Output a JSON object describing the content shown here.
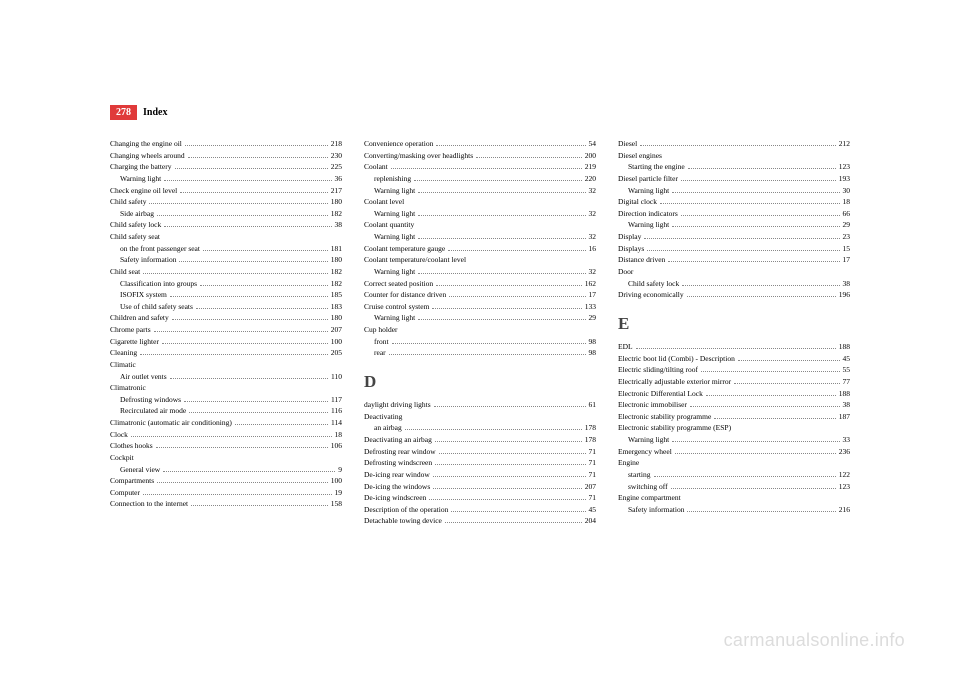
{
  "header": {
    "page_number": "278",
    "title": "Index"
  },
  "watermark": "carmanualsonline.info",
  "col1": [
    {
      "t": "e",
      "label": "Changing the engine oil",
      "pg": "218"
    },
    {
      "t": "e",
      "label": "Changing wheels around",
      "pg": "230"
    },
    {
      "t": "e",
      "label": "Charging the battery",
      "pg": "225"
    },
    {
      "t": "s",
      "label": "Warning light",
      "pg": "36"
    },
    {
      "t": "e",
      "label": "Check engine oil level",
      "pg": "217"
    },
    {
      "t": "e",
      "label": "Child safety",
      "pg": "180"
    },
    {
      "t": "s",
      "label": "Side airbag",
      "pg": "182"
    },
    {
      "t": "e",
      "label": "Child safety lock",
      "pg": "38"
    },
    {
      "t": "h",
      "label": "Child safety seat"
    },
    {
      "t": "s",
      "label": "on the front passenger seat",
      "pg": "181"
    },
    {
      "t": "s",
      "label": "Safety information",
      "pg": "180"
    },
    {
      "t": "e",
      "label": "Child seat",
      "pg": "182"
    },
    {
      "t": "s",
      "label": "Classification into groups",
      "pg": "182"
    },
    {
      "t": "s",
      "label": "ISOFIX system",
      "pg": "185"
    },
    {
      "t": "s",
      "label": "Use of child safety seats",
      "pg": "183"
    },
    {
      "t": "e",
      "label": "Children and safety",
      "pg": "180"
    },
    {
      "t": "e",
      "label": "Chrome parts",
      "pg": "207"
    },
    {
      "t": "e",
      "label": "Cigarette lighter",
      "pg": "100"
    },
    {
      "t": "e",
      "label": "Cleaning",
      "pg": "205"
    },
    {
      "t": "h",
      "label": "Climatic"
    },
    {
      "t": "s",
      "label": "Air outlet vents",
      "pg": "110"
    },
    {
      "t": "h",
      "label": "Climatronic"
    },
    {
      "t": "s",
      "label": "Defrosting windows",
      "pg": "117"
    },
    {
      "t": "s",
      "label": "Recirculated air mode",
      "pg": "116"
    },
    {
      "t": "e",
      "label": "Climatronic (automatic air conditioning)",
      "pg": "114"
    },
    {
      "t": "e",
      "label": "Clock",
      "pg": "18"
    },
    {
      "t": "e",
      "label": "Clothes hooks",
      "pg": "106"
    },
    {
      "t": "h",
      "label": "Cockpit"
    },
    {
      "t": "s",
      "label": "General view",
      "pg": "9"
    },
    {
      "t": "e",
      "label": "Compartments",
      "pg": "100"
    },
    {
      "t": "e",
      "label": "Computer",
      "pg": "19"
    },
    {
      "t": "e",
      "label": "Connection to the internet",
      "pg": "158"
    }
  ],
  "col2": [
    {
      "t": "e",
      "label": "Convenience operation",
      "pg": "54"
    },
    {
      "t": "e",
      "label": "Converting/masking over headlights",
      "pg": "200"
    },
    {
      "t": "e",
      "label": "Coolant",
      "pg": "219"
    },
    {
      "t": "s",
      "label": "replenishing",
      "pg": "220"
    },
    {
      "t": "s",
      "label": "Warning light",
      "pg": "32"
    },
    {
      "t": "h",
      "label": "Coolant level"
    },
    {
      "t": "s",
      "label": "Warning light",
      "pg": "32"
    },
    {
      "t": "h",
      "label": "Coolant quantity"
    },
    {
      "t": "s",
      "label": "Warning light",
      "pg": "32"
    },
    {
      "t": "e",
      "label": "Coolant temperature gauge",
      "pg": "16"
    },
    {
      "t": "h",
      "label": "Coolant temperature/coolant level"
    },
    {
      "t": "s",
      "label": "Warning light",
      "pg": "32"
    },
    {
      "t": "e",
      "label": "Correct seated position",
      "pg": "162"
    },
    {
      "t": "e",
      "label": "Counter for distance driven",
      "pg": "17"
    },
    {
      "t": "e",
      "label": "Cruise control system",
      "pg": "133"
    },
    {
      "t": "s",
      "label": "Warning light",
      "pg": "29"
    },
    {
      "t": "h",
      "label": "Cup holder"
    },
    {
      "t": "s",
      "label": "front",
      "pg": "98"
    },
    {
      "t": "s",
      "label": "rear",
      "pg": "98"
    },
    {
      "t": "L",
      "label": "D"
    },
    {
      "t": "e",
      "label": "daylight driving lights",
      "pg": "61"
    },
    {
      "t": "h",
      "label": "Deactivating"
    },
    {
      "t": "s",
      "label": "an airbag",
      "pg": "178"
    },
    {
      "t": "e",
      "label": "Deactivating an airbag",
      "pg": "178"
    },
    {
      "t": "e",
      "label": "Defrosting rear window",
      "pg": "71"
    },
    {
      "t": "e",
      "label": "Defrosting windscreen",
      "pg": "71"
    },
    {
      "t": "e",
      "label": "De-icing rear window",
      "pg": "71"
    },
    {
      "t": "e",
      "label": "De-icing the windows",
      "pg": "207"
    },
    {
      "t": "e",
      "label": "De-icing windscreen",
      "pg": "71"
    },
    {
      "t": "e",
      "label": "Description of the operation",
      "pg": "45"
    },
    {
      "t": "e",
      "label": "Detachable towing device",
      "pg": "204"
    }
  ],
  "col3": [
    {
      "t": "e",
      "label": "Diesel",
      "pg": "212"
    },
    {
      "t": "h",
      "label": "Diesel engines"
    },
    {
      "t": "s",
      "label": "Starting the engine",
      "pg": "123"
    },
    {
      "t": "e",
      "label": "Diesel particle filter",
      "pg": "193"
    },
    {
      "t": "s",
      "label": "Warning light",
      "pg": "30"
    },
    {
      "t": "e",
      "label": "Digital clock",
      "pg": "18"
    },
    {
      "t": "e",
      "label": "Direction indicators",
      "pg": "66"
    },
    {
      "t": "s",
      "label": "Warning light",
      "pg": "29"
    },
    {
      "t": "e",
      "label": "Display",
      "pg": "23"
    },
    {
      "t": "e",
      "label": "Displays",
      "pg": "15"
    },
    {
      "t": "e",
      "label": "Distance driven",
      "pg": "17"
    },
    {
      "t": "h",
      "label": "Door"
    },
    {
      "t": "s",
      "label": "Child safety lock",
      "pg": "38"
    },
    {
      "t": "e",
      "label": "Driving economically",
      "pg": "196"
    },
    {
      "t": "L",
      "label": "E"
    },
    {
      "t": "e",
      "label": "EDL",
      "pg": "188"
    },
    {
      "t": "e",
      "label": "Electric boot lid (Combi) - Description",
      "pg": "45"
    },
    {
      "t": "e",
      "label": "Electric sliding/tilting roof",
      "pg": "55"
    },
    {
      "t": "e",
      "label": "Electrically adjustable exterior mirror",
      "pg": "77"
    },
    {
      "t": "e",
      "label": "Electronic Differential Lock",
      "pg": "188"
    },
    {
      "t": "e",
      "label": "Electronic immobiliser",
      "pg": "38"
    },
    {
      "t": "e",
      "label": "Electronic stability programme",
      "pg": "187"
    },
    {
      "t": "h",
      "label": "Electronic stability programme (ESP)"
    },
    {
      "t": "s",
      "label": "Warning light",
      "pg": "33"
    },
    {
      "t": "e",
      "label": "Emergency wheel",
      "pg": "236"
    },
    {
      "t": "h",
      "label": "Engine"
    },
    {
      "t": "s",
      "label": "starting",
      "pg": "122"
    },
    {
      "t": "s",
      "label": "switching off",
      "pg": "123"
    },
    {
      "t": "h",
      "label": "Engine compartment"
    },
    {
      "t": "s",
      "label": "Safety information",
      "pg": "216"
    }
  ]
}
